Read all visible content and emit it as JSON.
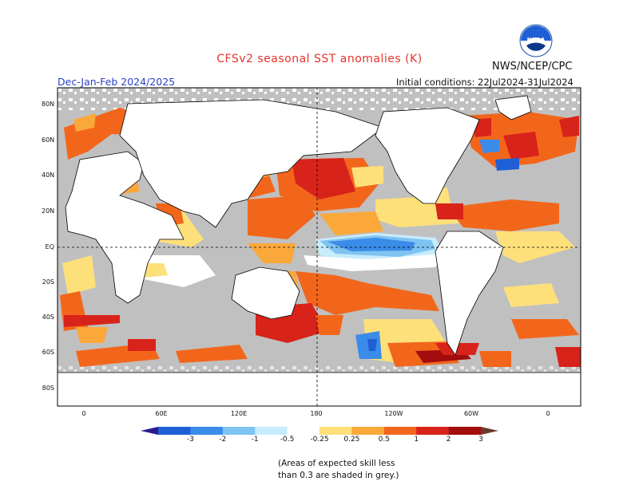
{
  "header": {
    "title": "CFSv2 seasonal SST anomalies (K)",
    "organization": "NWS/NCEP/CPC",
    "season_label": "Dec-Jan-Feb 2024/2025",
    "initial_conditions": "Initial conditions: 22Jul2024-31Jul2024",
    "logo_text": "NOAA"
  },
  "map": {
    "lat_labels": [
      "80N",
      "60N",
      "40N",
      "20N",
      "EQ",
      "20S",
      "40S",
      "60S",
      "80S"
    ],
    "lon_labels": [
      "0",
      "60E",
      "120E",
      "180",
      "120W",
      "60W",
      "0"
    ],
    "missing_color": "#c0c0c0"
  },
  "colorbar": {
    "labels": [
      "-3",
      "-2",
      "-1",
      "-0.5",
      "-0.25",
      "0.25",
      "0.5",
      "1",
      "2",
      "3"
    ],
    "colors": [
      "#2b1a8e",
      "#1f5fd6",
      "#3b8ce8",
      "#7ec3f2",
      "#c8ecfb",
      "#ffffff",
      "#fde07a",
      "#fba83a",
      "#f2661b",
      "#d8231a",
      "#a20e0e",
      "#6b3a2a"
    ]
  },
  "footnote": {
    "line1": "(Areas of expected skill less",
    "line2": "than 0.3 are shaded in grey.)"
  }
}
